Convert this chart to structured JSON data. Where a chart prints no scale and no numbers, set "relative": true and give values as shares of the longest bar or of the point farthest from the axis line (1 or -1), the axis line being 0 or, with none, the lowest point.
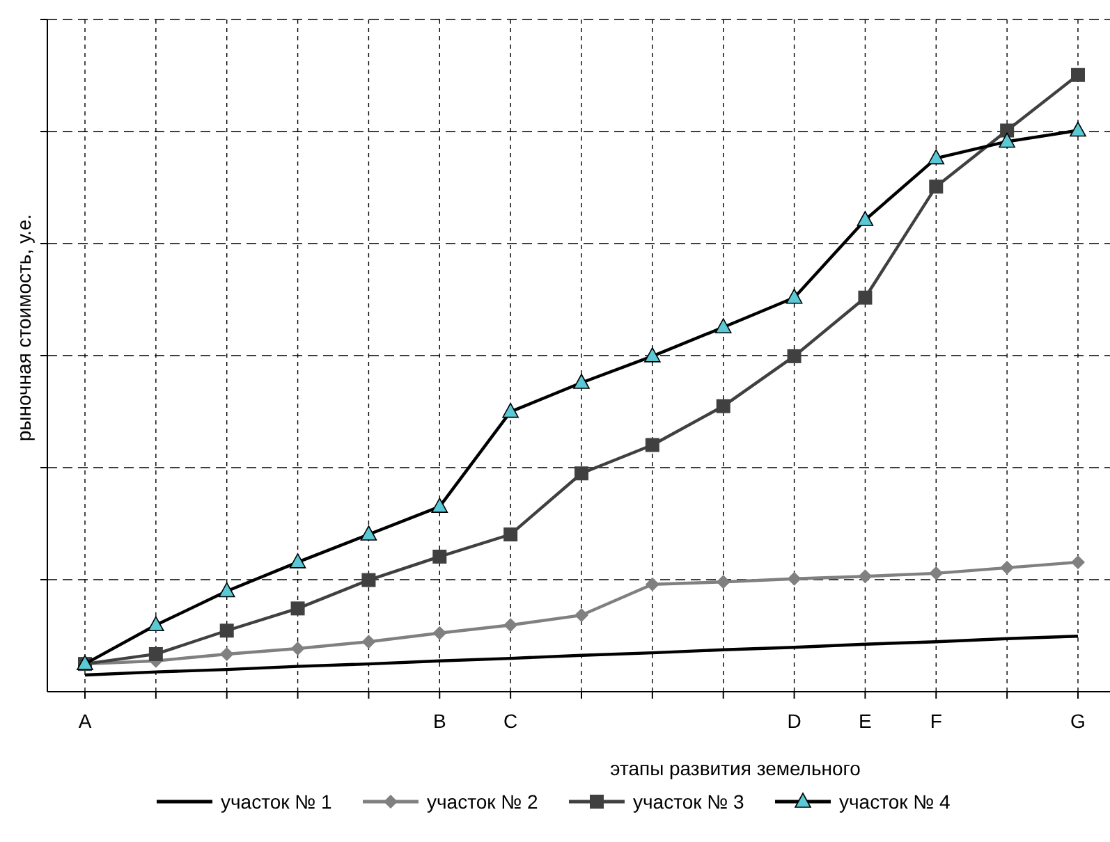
{
  "chart_data": {
    "type": "line",
    "relative": true,
    "xlabel": "этапы развития земельного",
    "ylabel": "рыночная стоимость, у.е.",
    "categories": [
      "A",
      null,
      null,
      null,
      null,
      "B",
      "C",
      null,
      null,
      null,
      "D",
      "E",
      "F",
      null,
      "G"
    ],
    "grid": true,
    "legend": "bottom",
    "line_style": "solid",
    "series": [
      {
        "name": "участок № 1",
        "color": "#000000",
        "marker": "none",
        "values": [
          0.027,
          0.032,
          0.036,
          0.041,
          0.045,
          0.05,
          0.054,
          0.059,
          0.063,
          0.068,
          0.072,
          0.077,
          0.081,
          0.086,
          0.09
        ]
      },
      {
        "name": "участок № 2",
        "color": "#808080",
        "marker": "diamond",
        "values": [
          0.045,
          0.05,
          0.061,
          0.07,
          0.081,
          0.095,
          0.108,
          0.124,
          0.174,
          0.178,
          0.183,
          0.187,
          0.192,
          0.201,
          0.21
        ]
      },
      {
        "name": "участок № 3",
        "color": "#404040",
        "marker": "square",
        "values": [
          0.045,
          0.061,
          0.099,
          0.135,
          0.181,
          0.219,
          0.255,
          0.354,
          0.4,
          0.463,
          0.544,
          0.639,
          0.819,
          0.91,
          1
        ]
      },
      {
        "name": "участок № 4",
        "color": "#000000",
        "marker": "triangle",
        "values": [
          0.045,
          0.108,
          0.163,
          0.21,
          0.255,
          0.3,
          0.454,
          0.501,
          0.544,
          0.591,
          0.639,
          0.765,
          0.865,
          0.892,
          0.91
        ]
      }
    ]
  }
}
